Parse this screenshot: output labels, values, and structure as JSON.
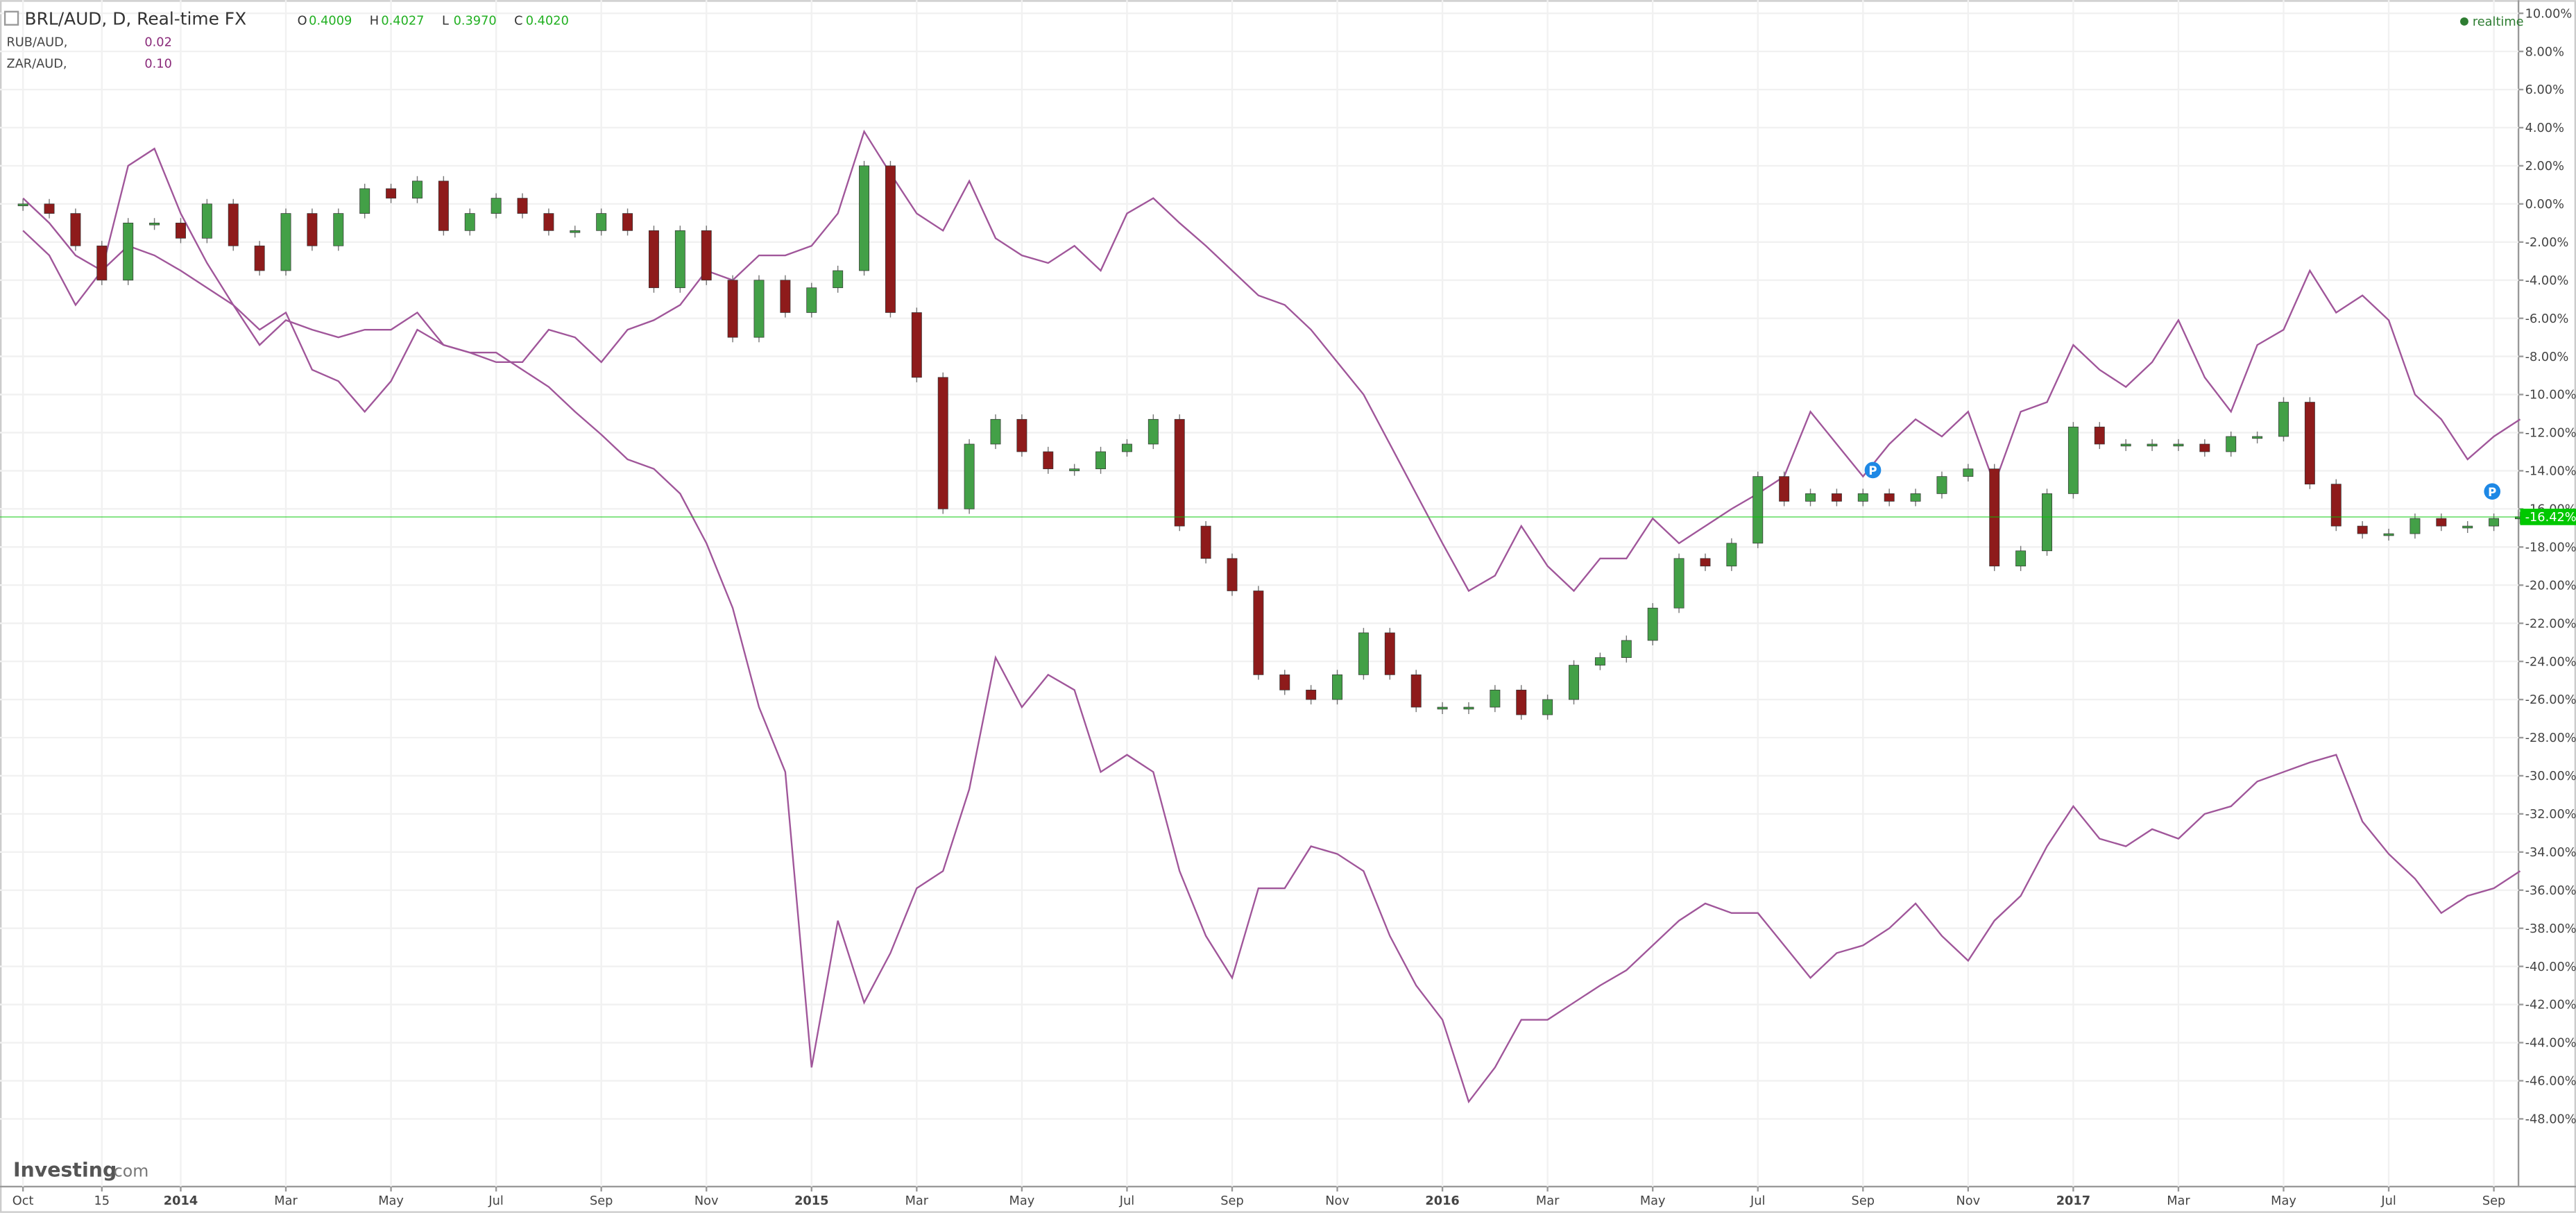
{
  "header": {
    "ohlc": [
      {
        "key": "O",
        "value": "0.4009"
      },
      {
        "key": "H",
        "value": "0.4027"
      },
      {
        "key": "L",
        "value": "0.3970"
      },
      {
        "key": "C",
        "value": "0.4020"
      }
    ],
    "status": "realtime",
    "watermark": [
      "Investing",
      ".com"
    ]
  },
  "chart_data": {
    "type": "line",
    "categories": [
      "Oct",
      null,
      null,
      "15",
      null,
      null,
      "2014",
      null,
      null,
      null,
      "Mar",
      null,
      null,
      null,
      "May",
      null,
      null,
      null,
      "Jul",
      null,
      null,
      null,
      "Sep",
      null,
      null,
      null,
      "Nov",
      null,
      null,
      null,
      "2015",
      null,
      null,
      null,
      "Mar",
      null,
      null,
      null,
      "May",
      null,
      null,
      null,
      "Jul",
      null,
      null,
      null,
      "Sep",
      null,
      null,
      null,
      "Nov",
      null,
      null,
      null,
      "2016",
      null,
      null,
      null,
      "Mar",
      null,
      null,
      null,
      "May",
      null,
      null,
      null,
      "Jul",
      null,
      null,
      null,
      "Sep",
      null,
      null,
      null,
      "Nov",
      null,
      null,
      null,
      "2017",
      null,
      null,
      null,
      "Mar",
      null,
      null,
      null,
      "May",
      null,
      null,
      null,
      "Jul",
      null,
      null,
      null,
      "Sep",
      null
    ],
    "series": [
      {
        "name": "BRL/AUD, D, Real-time FX",
        "type": "candlestick",
        "color": "#43a047",
        "down_color": "#8e1b1b",
        "values": [
          0,
          -0.5,
          -2.2,
          -4,
          -1,
          -1,
          -1.8,
          0,
          -2.2,
          -3.5,
          -0.5,
          -2.2,
          -0.5,
          0.8,
          0.3,
          1.2,
          -1.4,
          -0.5,
          0.3,
          -0.5,
          -1.4,
          -1.4,
          -0.5,
          -1.4,
          -4.4,
          -1.4,
          -4,
          -7,
          -4,
          -5.7,
          -4.4,
          -3.5,
          2,
          -5.7,
          -9.1,
          -16,
          -12.6,
          -11.3,
          -13,
          -13.9,
          -13.9,
          -13,
          -12.6,
          -11.3,
          -16.9,
          -18.6,
          -20.3,
          -24.7,
          -25.5,
          -26,
          -24.7,
          -22.5,
          -24.7,
          -26.4,
          -26.4,
          -26.4,
          -25.5,
          -26.8,
          -26,
          -24.2,
          -23.8,
          -22.9,
          -21.2,
          -18.6,
          -19,
          -17.8,
          -14.3,
          -15.6,
          -15.2,
          -15.6,
          -15.2,
          -15.6,
          -15.2,
          -14.3,
          -13.9,
          -19,
          -18.2,
          -15.2,
          -11.7,
          -12.6,
          -12.6,
          -12.6,
          -12.6,
          -13,
          -12.2,
          -12.2,
          -10.4,
          -14.7,
          -16.9,
          -17.3,
          -17.3,
          -16.5,
          -16.9,
          -16.9,
          -16.5,
          -16.42
        ]
      },
      {
        "name": "RUB/AUD,",
        "type": "line",
        "color": "#a0569a",
        "last": "0.02",
        "values": [
          0.3,
          -1,
          -2.7,
          -3.5,
          -2.2,
          -2.7,
          -3.5,
          -4.4,
          -5.3,
          -7.4,
          -6.1,
          -6.6,
          -7,
          -6.6,
          -6.6,
          -5.7,
          -7.4,
          -7.8,
          -7.8,
          -8.7,
          -9.6,
          -10.9,
          -12.1,
          -13.4,
          -13.9,
          -15.2,
          -17.8,
          -21.2,
          -26.4,
          -29.8,
          -45.3,
          -37.6,
          -41.9,
          -39.3,
          -35.9,
          -35,
          -30.7,
          -23.8,
          -26.4,
          -24.7,
          -25.5,
          -29.8,
          -28.9,
          -29.8,
          -35,
          -38.4,
          -40.6,
          -35.9,
          -35.9,
          -33.7,
          -34.1,
          -35,
          -38.4,
          -41,
          -42.8,
          -47.1,
          -45.3,
          -42.8,
          -42.8,
          -41.9,
          -41,
          -40.2,
          -38.9,
          -37.6,
          -36.7,
          -37.2,
          -37.2,
          -38.9,
          -40.6,
          -39.3,
          -38.9,
          -38,
          -36.7,
          -38.4,
          -39.7,
          -37.6,
          -36.3,
          -33.7,
          -31.6,
          -33.3,
          -33.7,
          -32.8,
          -33.3,
          -32,
          -31.6,
          -30.3,
          -29.8,
          -29.3,
          -28.9,
          -32.4,
          -34.1,
          -35.4,
          -37.2,
          -36.3,
          -35.9,
          -35
        ]
      },
      {
        "name": "ZAR/AUD,",
        "type": "line",
        "color": "#a0569a",
        "last": "0.10",
        "values": [
          -1.4,
          -2.7,
          -5.3,
          -3.5,
          2,
          2.9,
          -0.5,
          -3.1,
          -5.3,
          -6.6,
          -5.7,
          -8.7,
          -9.3,
          -10.9,
          -9.3,
          -6.6,
          -7.4,
          -7.8,
          -8.3,
          -8.3,
          -6.6,
          -7,
          -8.3,
          -6.6,
          -6.1,
          -5.3,
          -3.5,
          -4,
          -2.7,
          -2.7,
          -2.2,
          -0.5,
          3.8,
          1.6,
          -0.5,
          -1.4,
          1.2,
          -1.8,
          -2.7,
          -3.1,
          -2.2,
          -3.5,
          -0.5,
          0.3,
          -1,
          -2.2,
          -3.5,
          -4.8,
          -5.3,
          -6.6,
          -8.3,
          -10,
          -12.6,
          -15.2,
          -17.8,
          -20.3,
          -19.5,
          -16.9,
          -19,
          -20.3,
          -18.6,
          -18.6,
          -16.5,
          -17.8,
          -16.9,
          -16,
          -15.2,
          -14.3,
          -10.9,
          -12.6,
          -14.3,
          -12.6,
          -11.3,
          -12.2,
          -10.9,
          -14.7,
          -10.9,
          -10.4,
          -7.4,
          -8.7,
          -9.6,
          -8.3,
          -6.1,
          -9.1,
          -10.9,
          -7.4,
          -6.6,
          -3.5,
          -5.7,
          -4.8,
          -6.1,
          -10,
          -11.3,
          -13.4,
          -12.2,
          -11.3
        ]
      }
    ],
    "ylim": [
      -51.55,
      10.69
    ],
    "yticks": [
      {
        "value": 10,
        "label": "10.00%"
      },
      {
        "value": 8,
        "label": "8.00%"
      },
      {
        "value": 6,
        "label": "6.00%"
      },
      {
        "value": 4,
        "label": "4.00%"
      },
      {
        "value": 2,
        "label": "2.00%"
      },
      {
        "value": 0,
        "label": "0.00%"
      },
      {
        "value": -2,
        "label": "-2.00%"
      },
      {
        "value": -4,
        "label": "-4.00%"
      },
      {
        "value": -6,
        "label": "-6.00%"
      },
      {
        "value": -8,
        "label": "-8.00%"
      },
      {
        "value": -10,
        "label": "-10.00%"
      },
      {
        "value": -12,
        "label": "-12.00%"
      },
      {
        "value": -14,
        "label": "-14.00%"
      },
      {
        "value": -16,
        "label": "-16.00%"
      },
      {
        "value": -18,
        "label": "-18.00%"
      },
      {
        "value": -20,
        "label": "-20.00%"
      },
      {
        "value": -22,
        "label": "-22.00%"
      },
      {
        "value": -24,
        "label": "-24.00%"
      },
      {
        "value": -26,
        "label": "-26.00%"
      },
      {
        "value": -28,
        "label": "-28.00%"
      },
      {
        "value": -30,
        "label": "-30.00%"
      },
      {
        "value": -32,
        "label": "-32.00%"
      },
      {
        "value": -34,
        "label": "-34.00%"
      },
      {
        "value": -36,
        "label": "-36.00%"
      },
      {
        "value": -38,
        "label": "-38.00%"
      },
      {
        "value": -40,
        "label": "-40.00%"
      },
      {
        "value": -42,
        "label": "-42.00%"
      },
      {
        "value": -44,
        "label": "-44.00%"
      },
      {
        "value": -46,
        "label": "-46.00%"
      },
      {
        "value": -48,
        "label": "-48.00%"
      }
    ],
    "current": {
      "value": -16.42,
      "label": "-16.42%",
      "color": "#00c800"
    },
    "annotations": [
      "P",
      "P"
    ],
    "grid": true
  }
}
